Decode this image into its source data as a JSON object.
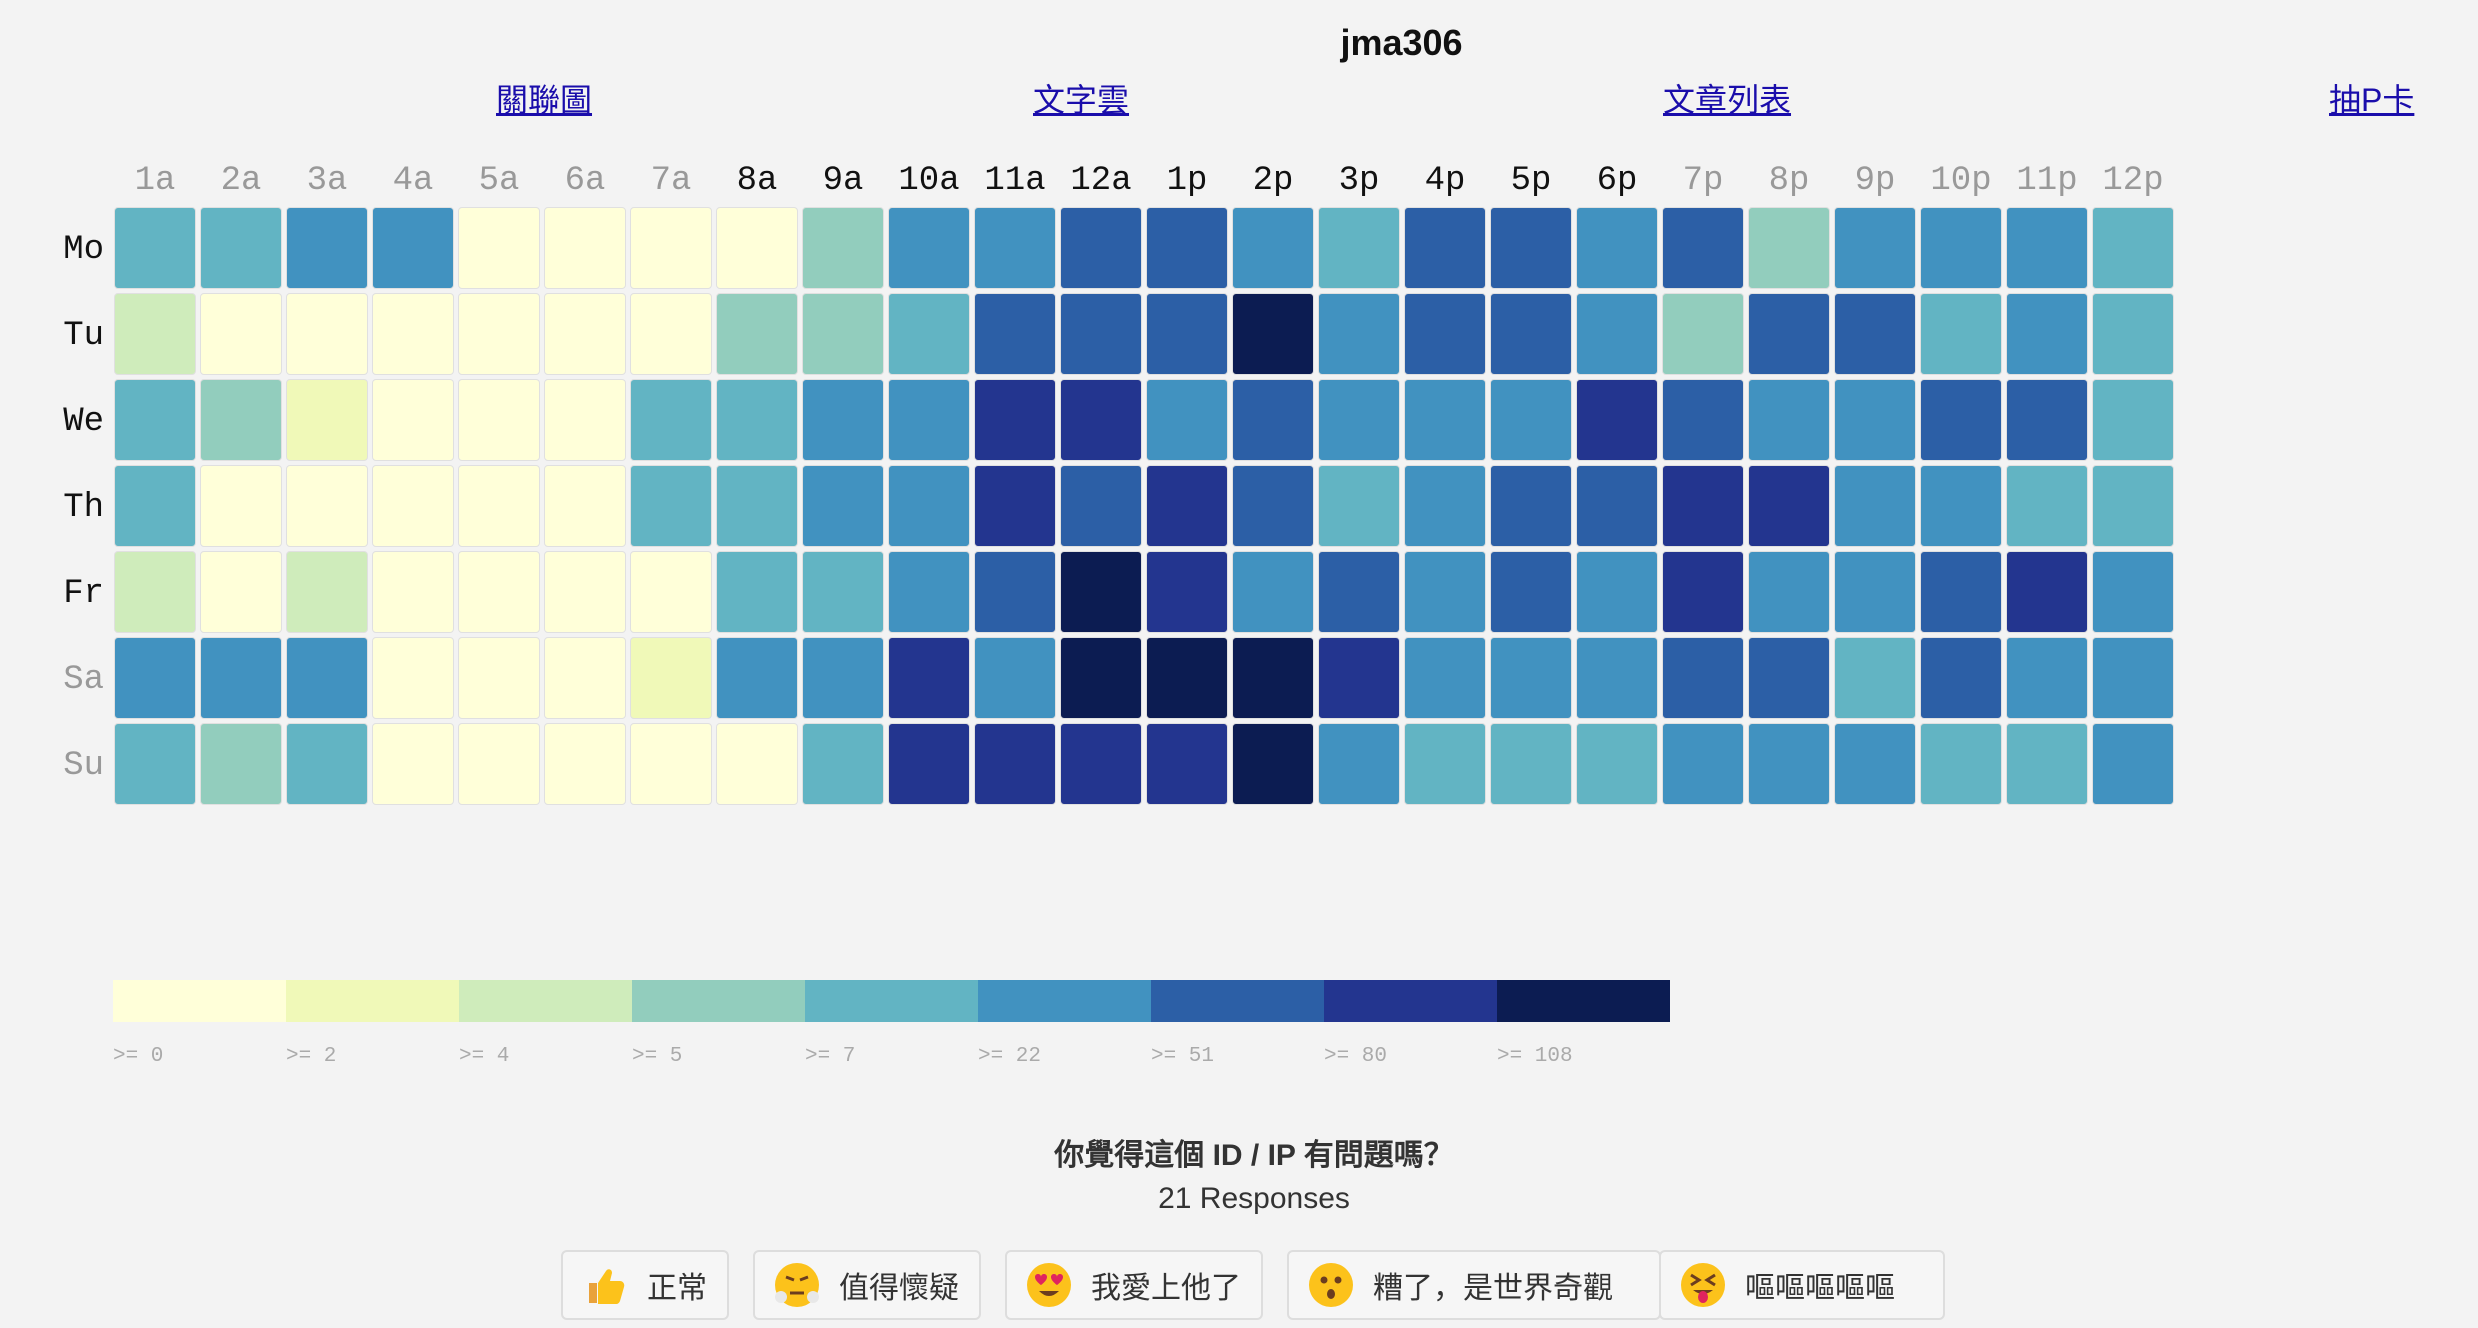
{
  "page": {
    "title": "jma306"
  },
  "nav": [
    {
      "label": "關聯圖"
    },
    {
      "label": "文字雲"
    },
    {
      "label": "文章列表"
    },
    {
      "label": "抽P卡"
    }
  ],
  "chart_data": {
    "type": "heatmap",
    "x_labels": [
      "1a",
      "2a",
      "3a",
      "4a",
      "5a",
      "6a",
      "7a",
      "8a",
      "9a",
      "10a",
      "11a",
      "12a",
      "1p",
      "2p",
      "3p",
      "4p",
      "5p",
      "6p",
      "7p",
      "8p",
      "9p",
      "10p",
      "11p",
      "12p"
    ],
    "x_label_emphasis": [
      false,
      false,
      false,
      false,
      false,
      false,
      false,
      true,
      true,
      true,
      true,
      true,
      true,
      true,
      true,
      true,
      true,
      true,
      false,
      false,
      false,
      false,
      false,
      false
    ],
    "y_labels": [
      "Mo",
      "Tu",
      "We",
      "Th",
      "Fr",
      "Sa",
      "Su"
    ],
    "y_label_emphasis": [
      true,
      true,
      true,
      true,
      true,
      false,
      false
    ],
    "legend": {
      "thresholds": [
        0,
        2,
        4,
        5,
        7,
        22,
        51,
        80,
        108
      ],
      "labels": [
        ">= 0",
        ">= 2",
        ">= 4",
        ">= 5",
        ">= 7",
        ">= 22",
        ">= 51",
        ">= 80",
        ">= 108"
      ],
      "colors": [
        "#ffffd9",
        "#f0f9b8",
        "#cfecbb",
        "#92cdbd",
        "#62b4c3",
        "#4192c0",
        "#2c5fa6",
        "#23358f",
        "#0c1c52"
      ]
    },
    "bins": [
      [
        4,
        4,
        5,
        5,
        0,
        0,
        0,
        0,
        3,
        5,
        5,
        6,
        6,
        5,
        4,
        6,
        6,
        5,
        6,
        3,
        5,
        5,
        5,
        4
      ],
      [
        2,
        0,
        0,
        0,
        0,
        0,
        0,
        3,
        3,
        4,
        6,
        6,
        6,
        8,
        5,
        6,
        6,
        5,
        3,
        6,
        6,
        4,
        5,
        4
      ],
      [
        4,
        3,
        1,
        0,
        0,
        0,
        4,
        4,
        5,
        5,
        7,
        7,
        5,
        6,
        5,
        5,
        5,
        7,
        6,
        5,
        5,
        6,
        6,
        4
      ],
      [
        4,
        0,
        0,
        0,
        0,
        0,
        4,
        4,
        5,
        5,
        7,
        6,
        7,
        6,
        4,
        5,
        6,
        6,
        7,
        7,
        5,
        5,
        4,
        4
      ],
      [
        2,
        0,
        2,
        0,
        0,
        0,
        0,
        4,
        4,
        5,
        6,
        8,
        7,
        5,
        6,
        5,
        6,
        5,
        7,
        5,
        5,
        6,
        7,
        5
      ],
      [
        5,
        5,
        5,
        0,
        0,
        0,
        1,
        5,
        5,
        7,
        5,
        8,
        8,
        8,
        7,
        5,
        5,
        5,
        6,
        6,
        4,
        6,
        5,
        5
      ],
      [
        4,
        3,
        4,
        0,
        0,
        0,
        0,
        0,
        4,
        7,
        7,
        7,
        7,
        8,
        5,
        4,
        4,
        4,
        5,
        5,
        5,
        4,
        4,
        5
      ]
    ]
  },
  "poll": {
    "question": "你覺得這個 ID / IP 有問題嗎？",
    "count_text": "21 Responses",
    "reactions": [
      {
        "label": "正常",
        "icon": "thumbs-up-icon"
      },
      {
        "label": "值得懷疑",
        "icon": "steam-face-icon"
      },
      {
        "label": "我愛上他了",
        "icon": "heart-eyes-face-icon"
      },
      {
        "label": "糟了，是世界奇觀",
        "icon": "astonished-face-icon"
      },
      {
        "label": "嘔嘔嘔嘔嘔",
        "icon": "tongue-out-face-icon"
      }
    ]
  }
}
